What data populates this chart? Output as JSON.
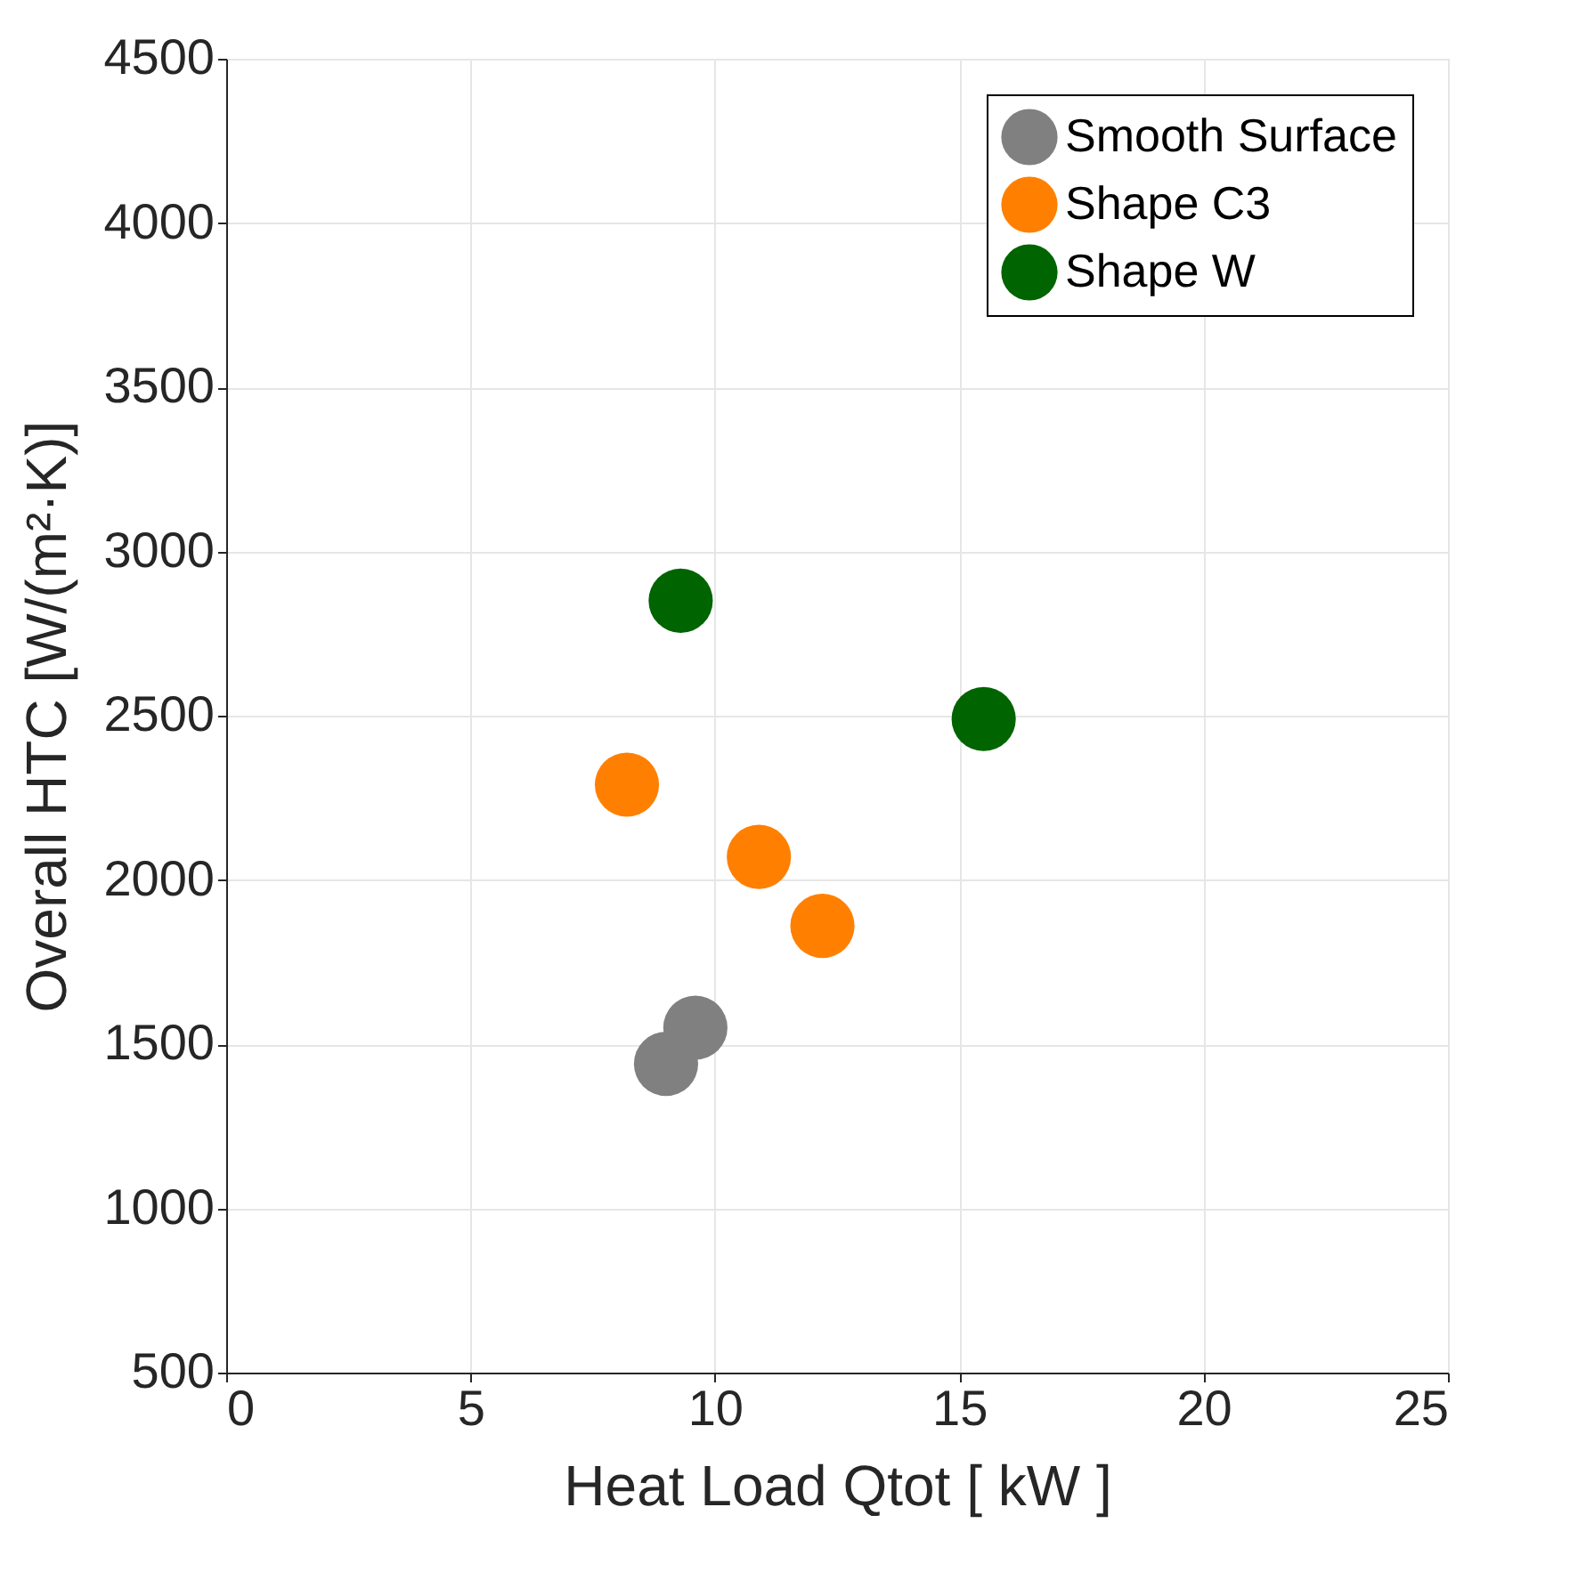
{
  "chart_data": {
    "type": "scatter",
    "xlabel": "Heat Load Qtot  [ kW ]",
    "ylabel": "Overall HTC [W/(m²·K)]",
    "series": [
      {
        "name": "Smooth Surface",
        "color": "#808080",
        "x": [
          9.0,
          9.6
        ],
        "values": [
          1440,
          1550
        ]
      },
      {
        "name": "Shape C3",
        "color": "#ff8000",
        "x": [
          8.2,
          10.9,
          12.2
        ],
        "values": [
          2290,
          2070,
          1860
        ]
      },
      {
        "name": "Shape W",
        "color": "#006400",
        "x": [
          9.3,
          15.5
        ],
        "values": [
          2850,
          2490
        ]
      }
    ],
    "xlim": [
      0,
      25
    ],
    "xticks": [
      0,
      5,
      10,
      15,
      20,
      25
    ],
    "ylim": [
      500,
      4500
    ],
    "yticks": [
      500,
      1000,
      1500,
      2000,
      2500,
      3000,
      3500,
      4000,
      4500
    ],
    "grid": true,
    "legend": "top right",
    "marker": "circle"
  }
}
